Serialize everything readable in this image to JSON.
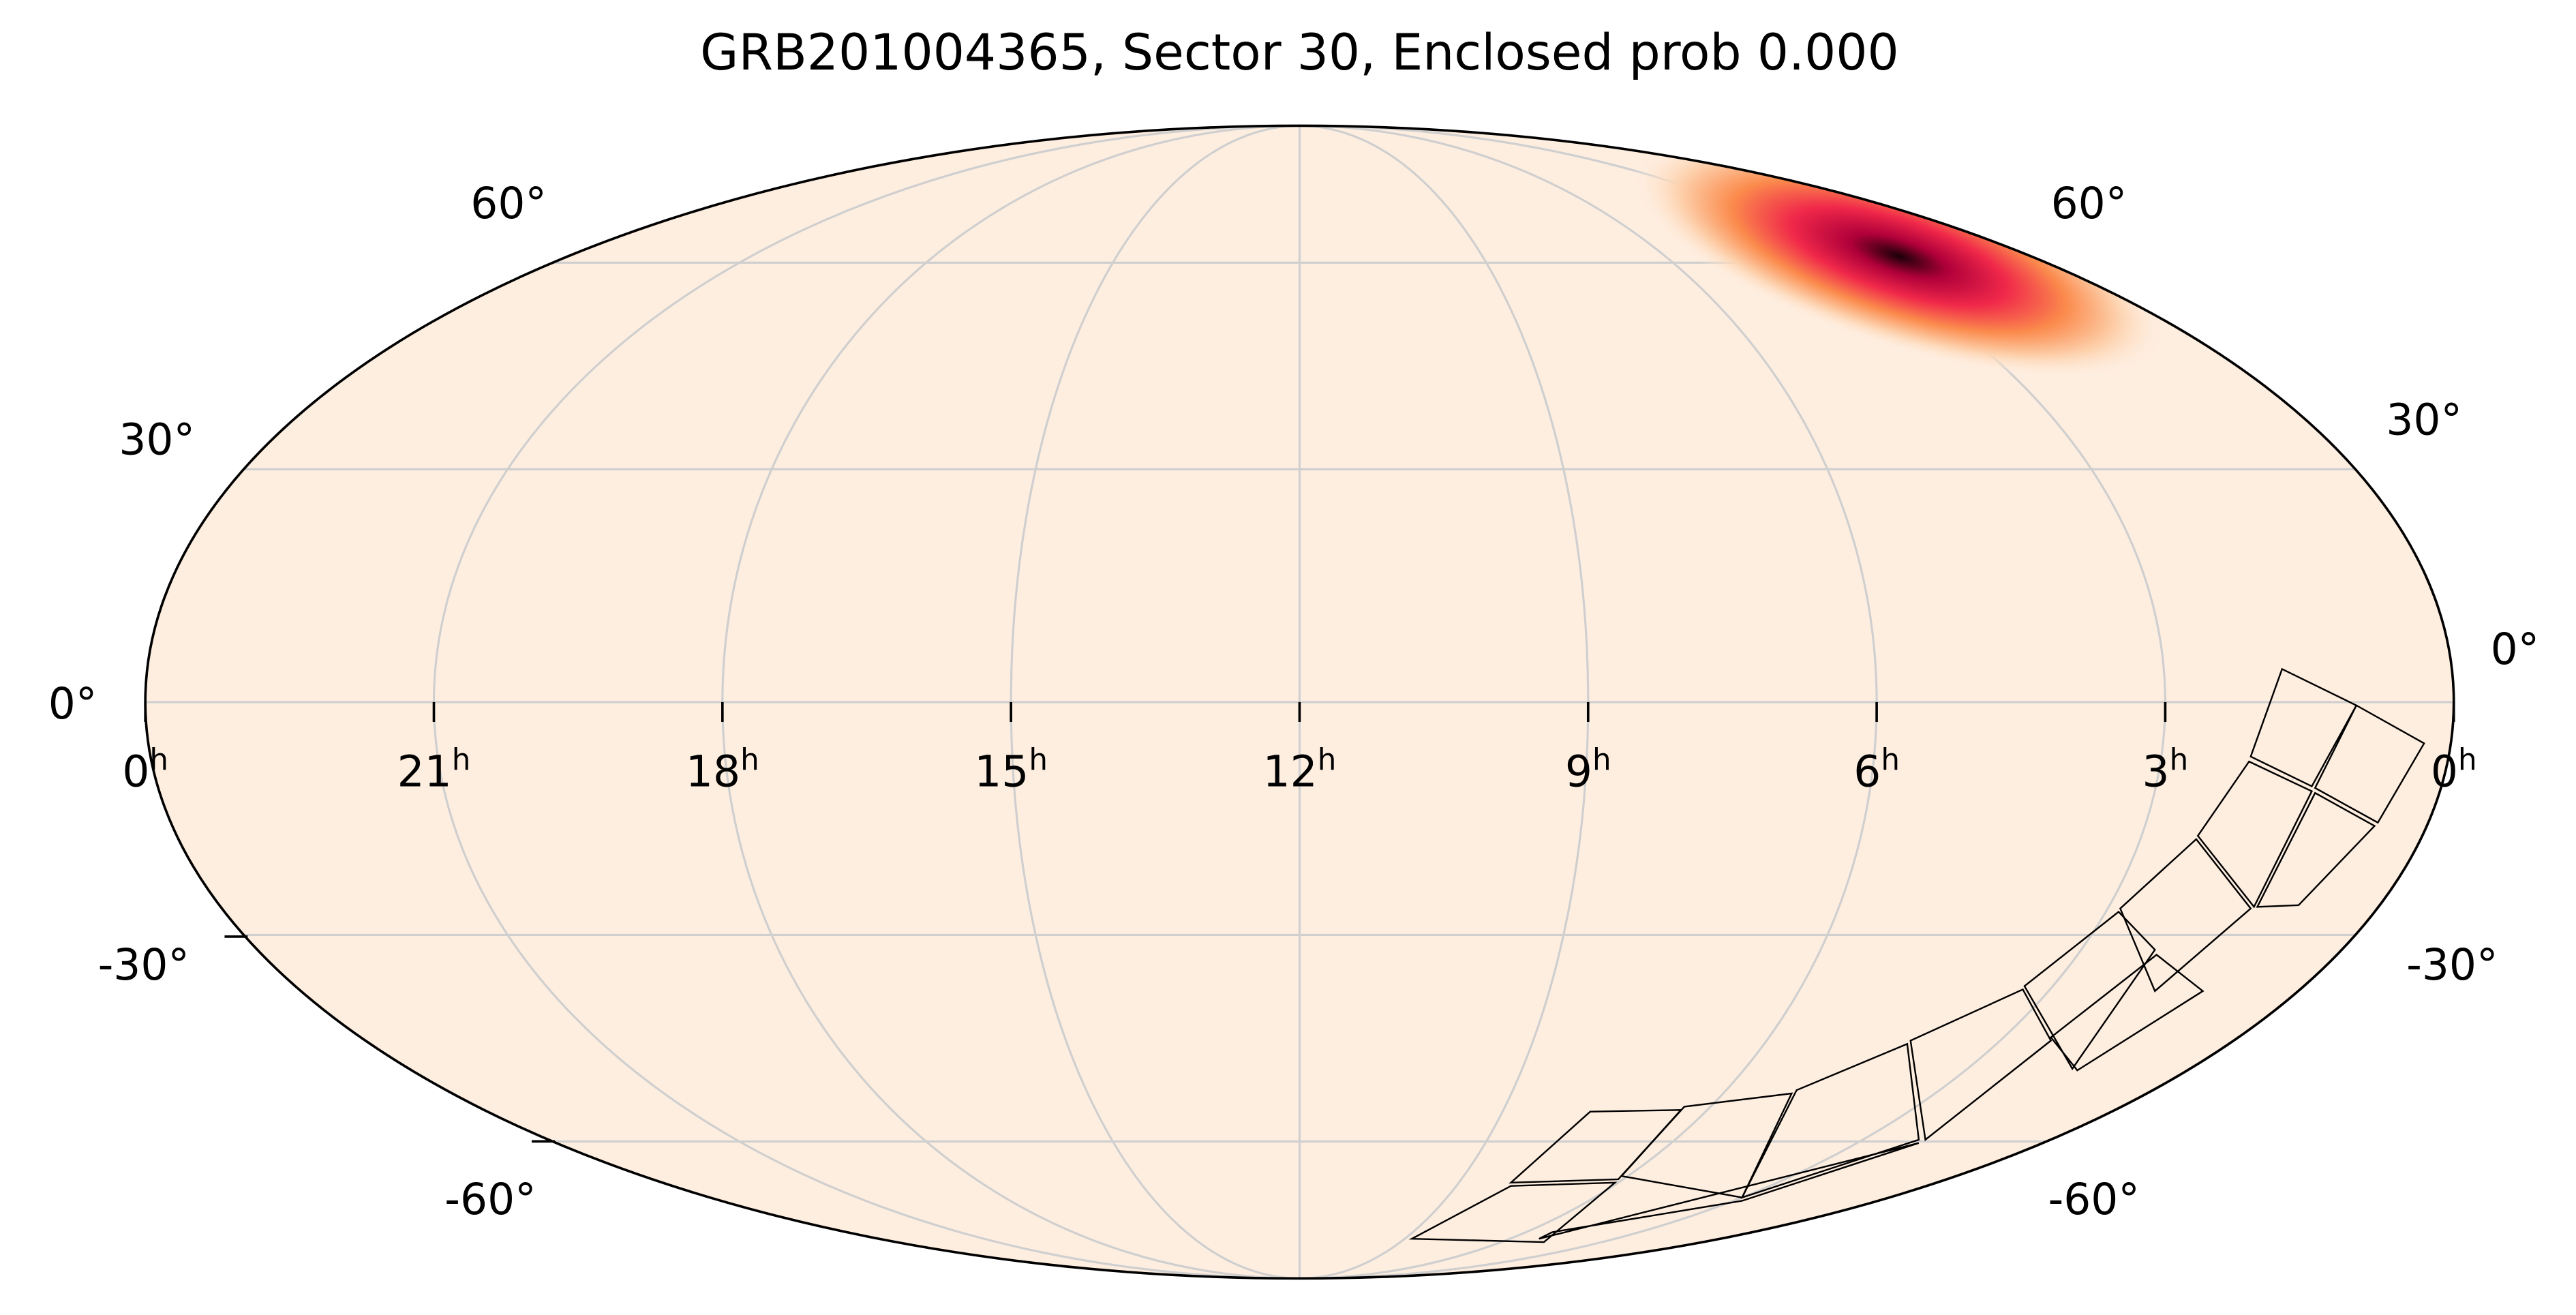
{
  "title": "GRB201004365, Sector 30, Enclosed prob 0.000",
  "ra_labels": [
    {
      "text": "0",
      "sup": "h"
    },
    {
      "text": "21",
      "sup": "h"
    },
    {
      "text": "18",
      "sup": "h"
    },
    {
      "text": "15",
      "sup": "h"
    },
    {
      "text": "12",
      "sup": "h"
    },
    {
      "text": "9",
      "sup": "h"
    },
    {
      "text": "6",
      "sup": "h"
    },
    {
      "text": "3",
      "sup": "h"
    },
    {
      "text": "0",
      "sup": "h"
    }
  ],
  "dec_labels_left": [
    "60°",
    "30°",
    "0°",
    "-30°",
    "-60°"
  ],
  "dec_labels_right": [
    "60°",
    "30°",
    "0°",
    "-30°",
    "-60°"
  ]
}
